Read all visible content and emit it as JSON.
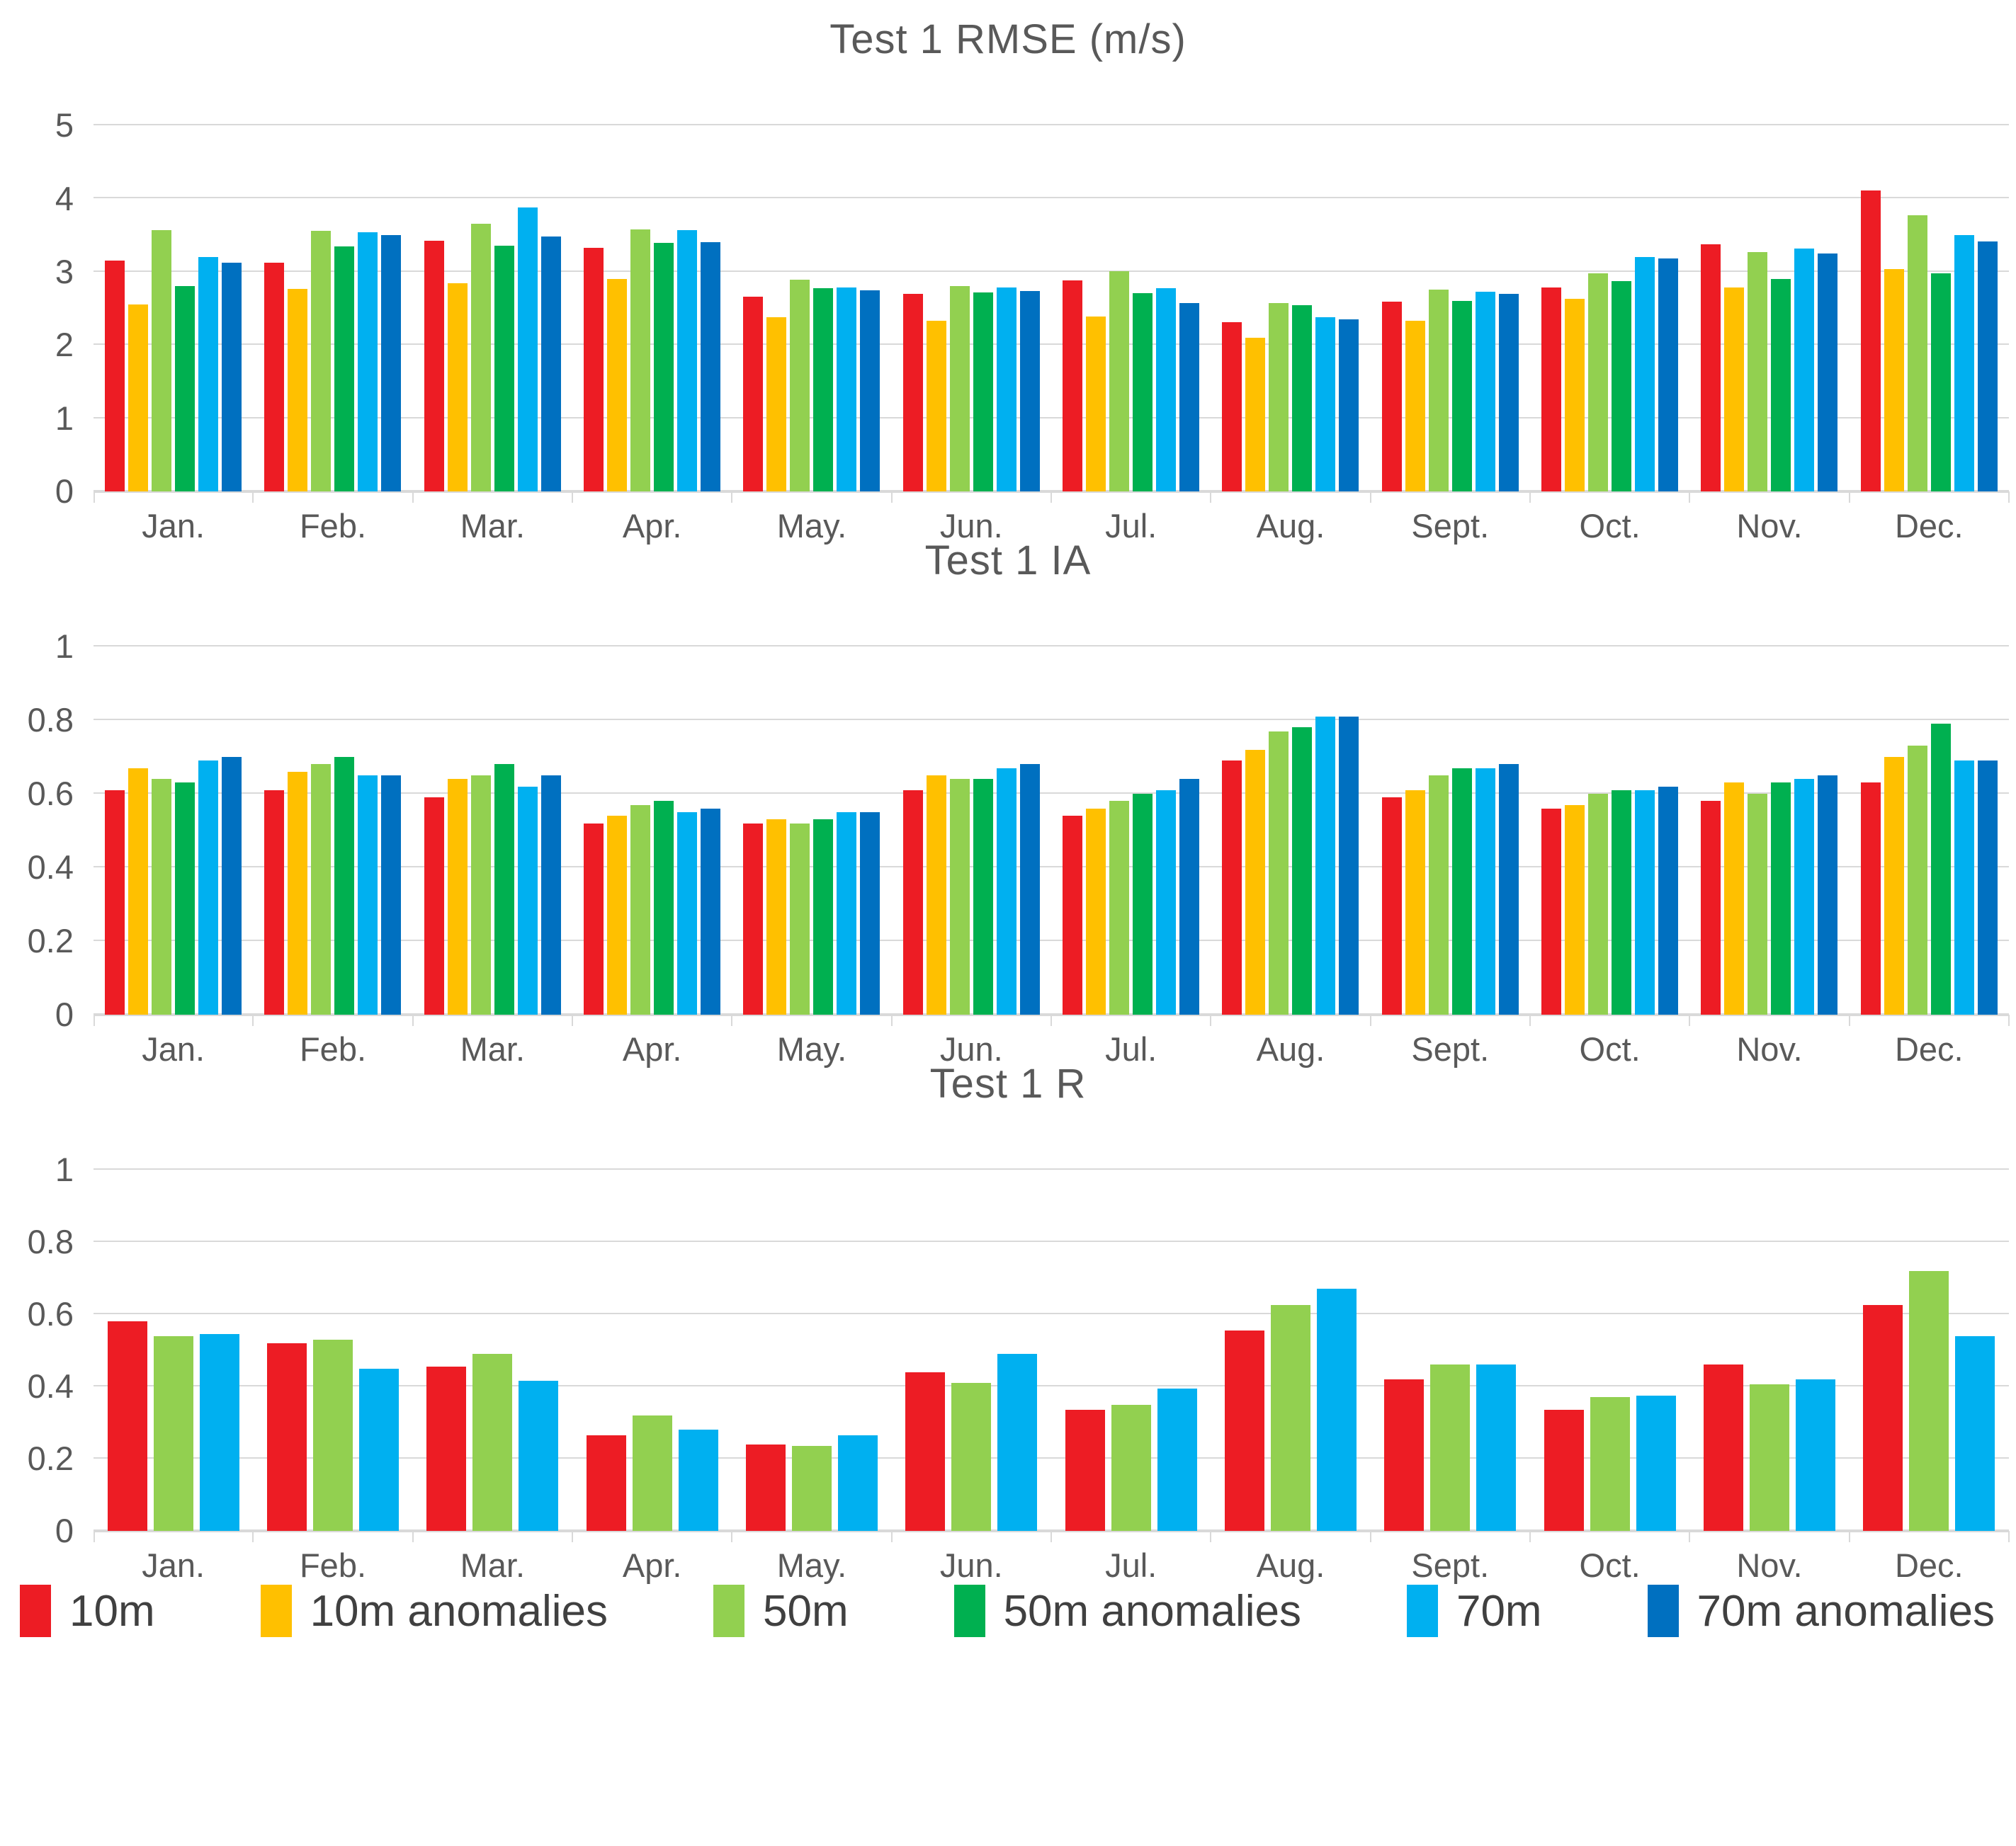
{
  "colors": {
    "gridline": "#d9d9d9",
    "title_text": "#595959",
    "axis_text": "#595959",
    "legend_text": "#404040",
    "series_10m": "#ed1c24",
    "series_10m_anomalies": "#ffc000",
    "series_50m": "#92d050",
    "series_50m_anomalies": "#00b050",
    "series_70m": "#00b0f0",
    "series_70m_anomalies": "#0070c0"
  },
  "legend": {
    "position": "bottom",
    "items": [
      {
        "label": "10m",
        "color": "#ed1c24"
      },
      {
        "label": "10m anomalies",
        "color": "#ffc000"
      },
      {
        "label": "50m",
        "color": "#92d050"
      },
      {
        "label": "50m anomalies",
        "color": "#00b050"
      },
      {
        "label": "70m",
        "color": "#00b0f0"
      },
      {
        "label": "70m anomalies",
        "color": "#0070c0"
      }
    ]
  },
  "chart_data": [
    {
      "type": "bar",
      "title": "Test 1 RMSE (m/s)",
      "xlabel": "",
      "ylabel": "",
      "ylim": [
        0,
        5
      ],
      "yticks": [
        "5",
        "4",
        "3",
        "2",
        "1",
        "0"
      ],
      "grid": true,
      "categories": [
        "Jan.",
        "Feb.",
        "Mar.",
        "Apr.",
        "May.",
        "Jun.",
        "Jul.",
        "Aug.",
        "Sept.",
        "Oct.",
        "Nov.",
        "Dec."
      ],
      "series": [
        {
          "name": "10m",
          "color": "#ed1c24",
          "values": [
            3.15,
            3.12,
            3.42,
            3.33,
            2.66,
            2.7,
            2.88,
            2.31,
            2.59,
            2.79,
            3.38,
            4.11
          ]
        },
        {
          "name": "10m anomalies",
          "color": "#ffc000",
          "values": [
            2.55,
            2.77,
            2.84,
            2.9,
            2.38,
            2.33,
            2.39,
            2.1,
            2.33,
            2.63,
            2.79,
            3.04
          ]
        },
        {
          "name": "50m",
          "color": "#92d050",
          "values": [
            3.57,
            3.56,
            3.66,
            3.58,
            2.89,
            2.8,
            3.01,
            2.57,
            2.76,
            2.98,
            3.27,
            3.77
          ]
        },
        {
          "name": "50m anomalies",
          "color": "#00b050",
          "values": [
            2.8,
            3.35,
            3.36,
            3.39,
            2.78,
            2.72,
            2.71,
            2.54,
            2.6,
            2.87,
            2.9,
            2.98
          ]
        },
        {
          "name": "70m",
          "color": "#00b0f0",
          "values": [
            3.2,
            3.54,
            3.88,
            3.57,
            2.79,
            2.79,
            2.78,
            2.38,
            2.73,
            3.2,
            3.32,
            3.5
          ]
        },
        {
          "name": "70m anomalies",
          "color": "#0070c0",
          "values": [
            3.12,
            3.5,
            3.48,
            3.4,
            2.75,
            2.74,
            2.57,
            2.35,
            2.7,
            3.18,
            3.25,
            3.41
          ]
        }
      ]
    },
    {
      "type": "bar",
      "title": "Test 1 IA",
      "xlabel": "",
      "ylabel": "",
      "ylim": [
        0,
        1
      ],
      "yticks": [
        "1",
        "0.8",
        "0.6",
        "0.4",
        "0.2",
        "0"
      ],
      "grid": true,
      "categories": [
        "Jan.",
        "Feb.",
        "Mar.",
        "Apr.",
        "May.",
        "Jun.",
        "Jul.",
        "Aug.",
        "Sept.",
        "Oct.",
        "Nov.",
        "Dec."
      ],
      "series": [
        {
          "name": "10m",
          "color": "#ed1c24",
          "values": [
            0.61,
            0.61,
            0.59,
            0.52,
            0.52,
            0.61,
            0.54,
            0.69,
            0.59,
            0.56,
            0.58,
            0.63
          ]
        },
        {
          "name": "10m anomalies",
          "color": "#ffc000",
          "values": [
            0.67,
            0.66,
            0.64,
            0.54,
            0.53,
            0.65,
            0.56,
            0.72,
            0.61,
            0.57,
            0.63,
            0.7
          ]
        },
        {
          "name": "50m",
          "color": "#92d050",
          "values": [
            0.64,
            0.68,
            0.65,
            0.57,
            0.52,
            0.64,
            0.58,
            0.77,
            0.65,
            0.6,
            0.6,
            0.73
          ]
        },
        {
          "name": "50m anomalies",
          "color": "#00b050",
          "values": [
            0.63,
            0.7,
            0.68,
            0.58,
            0.53,
            0.64,
            0.6,
            0.78,
            0.67,
            0.61,
            0.63,
            0.79
          ]
        },
        {
          "name": "70m",
          "color": "#00b0f0",
          "values": [
            0.69,
            0.65,
            0.62,
            0.55,
            0.55,
            0.67,
            0.61,
            0.81,
            0.67,
            0.61,
            0.64,
            0.69
          ]
        },
        {
          "name": "70m anomalies",
          "color": "#0070c0",
          "values": [
            0.7,
            0.65,
            0.65,
            0.56,
            0.55,
            0.68,
            0.64,
            0.81,
            0.68,
            0.62,
            0.65,
            0.69
          ]
        }
      ]
    },
    {
      "type": "bar",
      "title": "Test 1 R",
      "xlabel": "",
      "ylabel": "",
      "ylim": [
        0,
        1
      ],
      "yticks": [
        "1",
        "0.8",
        "0.6",
        "0.4",
        "0.2",
        "0"
      ],
      "grid": true,
      "categories": [
        "Jan.",
        "Feb.",
        "Mar.",
        "Apr.",
        "May.",
        "Jun.",
        "Jul.",
        "Aug.",
        "Sept.",
        "Oct.",
        "Nov.",
        "Dec."
      ],
      "series": [
        {
          "name": "10m",
          "color": "#ed1c24",
          "values": [
            0.58,
            0.52,
            0.455,
            0.265,
            0.24,
            0.44,
            0.335,
            0.555,
            0.42,
            0.335,
            0.46,
            0.625
          ]
        },
        {
          "name": "50m",
          "color": "#92d050",
          "values": [
            0.54,
            0.53,
            0.49,
            0.32,
            0.235,
            0.41,
            0.35,
            0.625,
            0.46,
            0.37,
            0.405,
            0.72
          ]
        },
        {
          "name": "70m",
          "color": "#00b0f0",
          "values": [
            0.545,
            0.45,
            0.415,
            0.28,
            0.265,
            0.49,
            0.395,
            0.67,
            0.46,
            0.375,
            0.42,
            0.54
          ]
        }
      ]
    }
  ]
}
